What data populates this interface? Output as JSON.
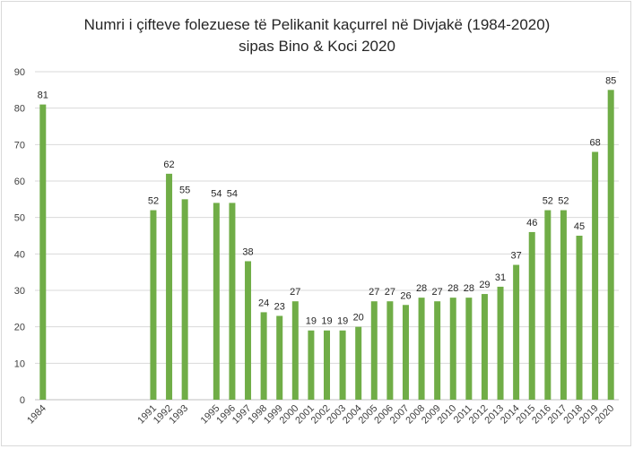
{
  "chart_data": {
    "type": "bar",
    "title": "Numri i çifteve folezuese të Pelikanit kaçurrel në Divjakë (1984-2020)",
    "subtitle": "sipas Bino & Koci 2020",
    "xlabel": "",
    "ylabel": "",
    "ylim": [
      0,
      90
    ],
    "yticks": [
      0,
      10,
      20,
      30,
      40,
      50,
      60,
      70,
      80,
      90
    ],
    "grid": true,
    "legend": "none",
    "bar_color": "#70ad47",
    "x_slots": [
      "1984",
      "",
      "",
      "",
      "",
      "",
      "",
      "1991",
      "1992",
      "1993",
      "",
      "1995",
      "1996",
      "1997",
      "1998",
      "1999",
      "2000",
      "2001",
      "2002",
      "2003",
      "2004",
      "2005",
      "2006",
      "2007",
      "2008",
      "2009",
      "2010",
      "2011",
      "2012",
      "2013",
      "2014",
      "2015",
      "2016",
      "2017",
      "2018",
      "2019",
      "2020"
    ],
    "categories": [
      "1984",
      "1991",
      "1992",
      "1993",
      "1995",
      "1996",
      "1997",
      "1998",
      "1999",
      "2000",
      "2001",
      "2002",
      "2003",
      "2004",
      "2005",
      "2006",
      "2007",
      "2008",
      "2009",
      "2010",
      "2011",
      "2012",
      "2013",
      "2014",
      "2015",
      "2016",
      "2017",
      "2018",
      "2019",
      "2020"
    ],
    "values": [
      81,
      52,
      62,
      55,
      54,
      54,
      38,
      24,
      23,
      27,
      19,
      19,
      19,
      20,
      27,
      27,
      26,
      28,
      27,
      28,
      28,
      29,
      31,
      37,
      46,
      52,
      52,
      45,
      68,
      85
    ]
  }
}
